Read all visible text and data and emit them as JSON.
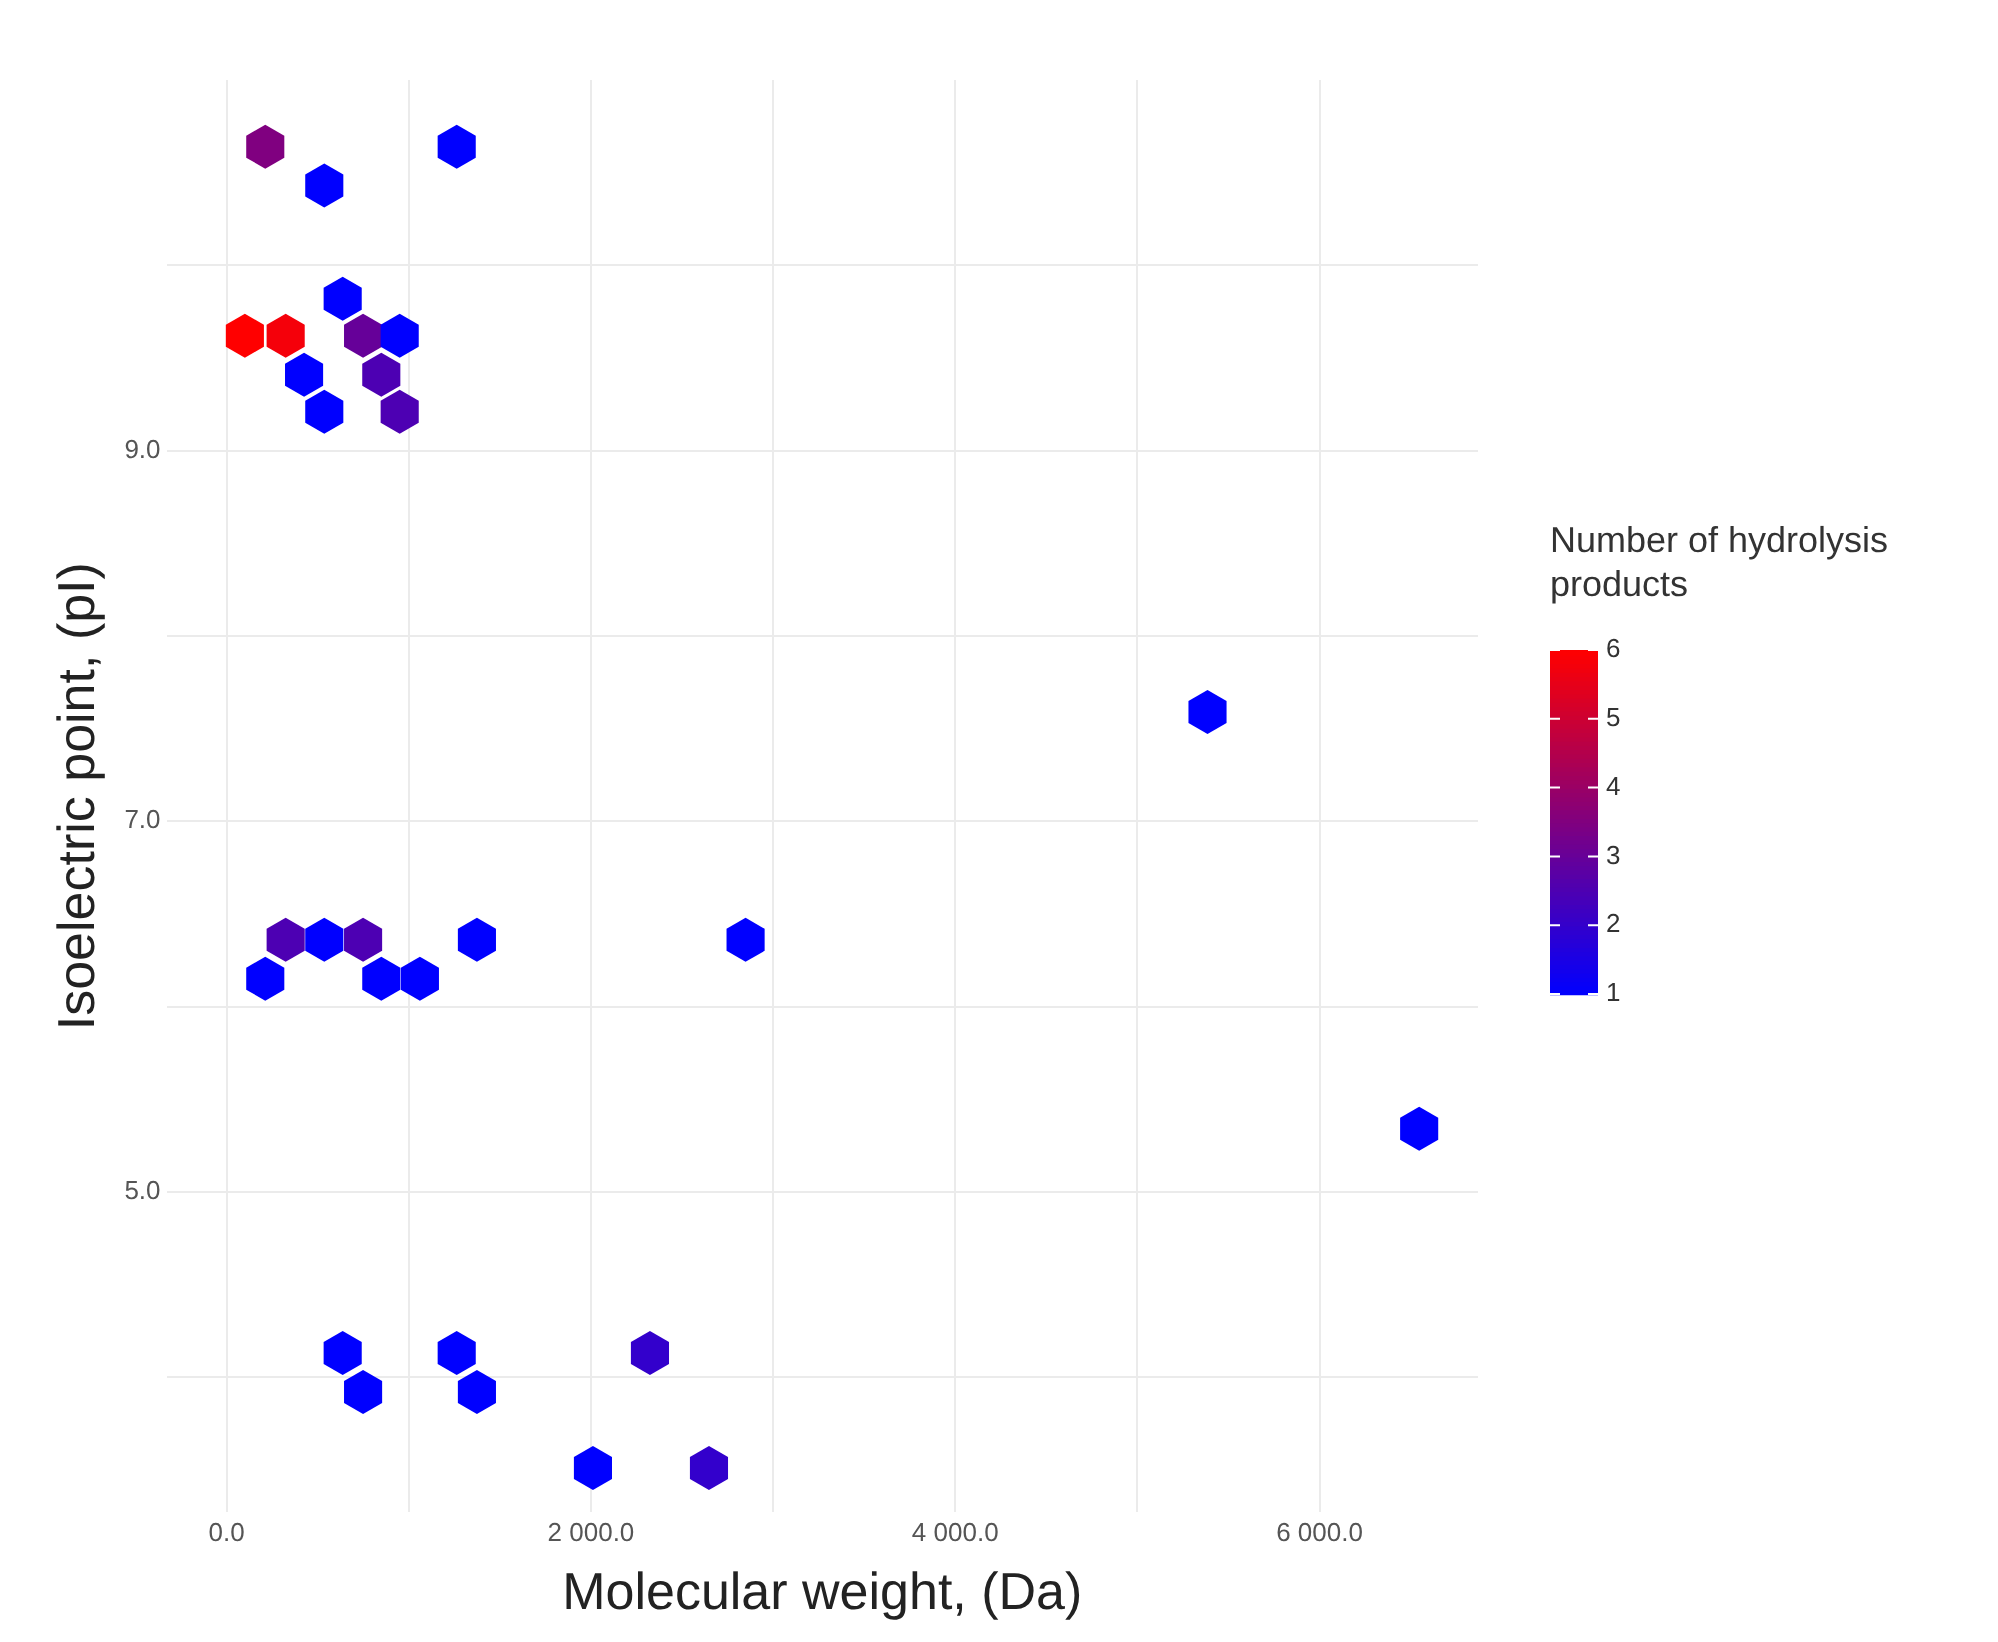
{
  "chart_data": {
    "type": "scatter",
    "xlabel": "Molecular weight, (Da)",
    "ylabel": "Isoelectric point, (pI)",
    "clabel": "Number of hydrolysis products",
    "x": [
      212,
      536,
      1263,
      100,
      324,
      637,
      749,
      950,
      425,
      849,
      536,
      950,
      5385,
      212,
      324,
      536,
      749,
      849,
      1061,
      1374,
      2849,
      6547,
      637,
      749,
      1263,
      1374,
      2011,
      2324,
      2648
    ],
    "values": [
      10.64,
      10.43,
      10.64,
      9.62,
      9.62,
      9.82,
      9.62,
      9.62,
      9.41,
      9.41,
      9.21,
      9.21,
      7.59,
      6.15,
      6.36,
      6.36,
      6.36,
      6.15,
      6.15,
      6.36,
      6.36,
      5.34,
      4.13,
      3.92,
      4.13,
      3.92,
      3.51,
      4.13,
      3.51
    ],
    "cvalues": [
      3.5,
      1,
      1,
      6,
      5.8,
      1,
      3,
      1,
      1,
      2.5,
      1,
      2.5,
      1,
      1,
      2.5,
      1,
      2.5,
      1,
      1,
      1,
      1,
      1,
      1,
      1,
      1,
      1,
      1,
      2,
      2
    ],
    "clim": [
      1,
      6
    ],
    "cticks": [
      1,
      2,
      3,
      4,
      5,
      6
    ],
    "xlim": [
      -330,
      6870
    ],
    "xticks": [
      {
        "value": 0,
        "label": "0.0"
      },
      {
        "value": 1000,
        "label": null
      },
      {
        "value": 2000,
        "label": "2 000.0"
      },
      {
        "value": 3000,
        "label": null
      },
      {
        "value": 4000,
        "label": "4 000.0"
      },
      {
        "value": 5000,
        "label": null
      },
      {
        "value": 6000,
        "label": "6 000.0"
      }
    ],
    "ylim": [
      3.27,
      11.0
    ],
    "yticks": [
      {
        "value": 4,
        "label": null
      },
      {
        "value": 5,
        "label": "5.0"
      },
      {
        "value": 6,
        "label": null
      },
      {
        "value": 7,
        "label": "7.0"
      },
      {
        "value": 8,
        "label": null
      },
      {
        "value": 9,
        "label": "9.0"
      },
      {
        "value": 10,
        "label": null
      }
    ],
    "grid": true
  }
}
